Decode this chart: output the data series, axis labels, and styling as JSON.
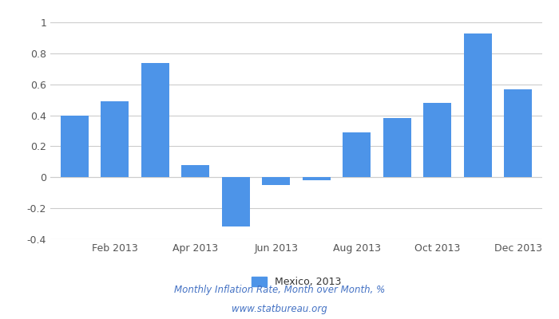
{
  "values": [
    0.4,
    0.49,
    0.74,
    0.08,
    -0.32,
    -0.05,
    -0.02,
    0.29,
    0.38,
    0.48,
    0.93,
    0.57
  ],
  "bar_color": "#4d94e8",
  "ylim": [
    -0.4,
    1.0
  ],
  "yticks": [
    -0.4,
    -0.2,
    0.0,
    0.2,
    0.4,
    0.6,
    0.8,
    1.0
  ],
  "ytick_labels": [
    "-0.4",
    "-0.2",
    "0",
    "0.2",
    "0.4",
    "0.6",
    "0.8",
    "1"
  ],
  "xtick_labels": [
    "Feb 2013",
    "Apr 2013",
    "Jun 2013",
    "Aug 2013",
    "Oct 2013",
    "Dec 2013"
  ],
  "xtick_positions": [
    1,
    3,
    5,
    7,
    9,
    11
  ],
  "legend_label": "Mexico, 2013",
  "footer_line1": "Monthly Inflation Rate, Month over Month, %",
  "footer_line2": "www.statbureau.org",
  "background_color": "#ffffff",
  "grid_color": "#cccccc",
  "footer_color": "#4472c4",
  "tick_label_color": "#555555",
  "tick_label_fontsize": 9
}
